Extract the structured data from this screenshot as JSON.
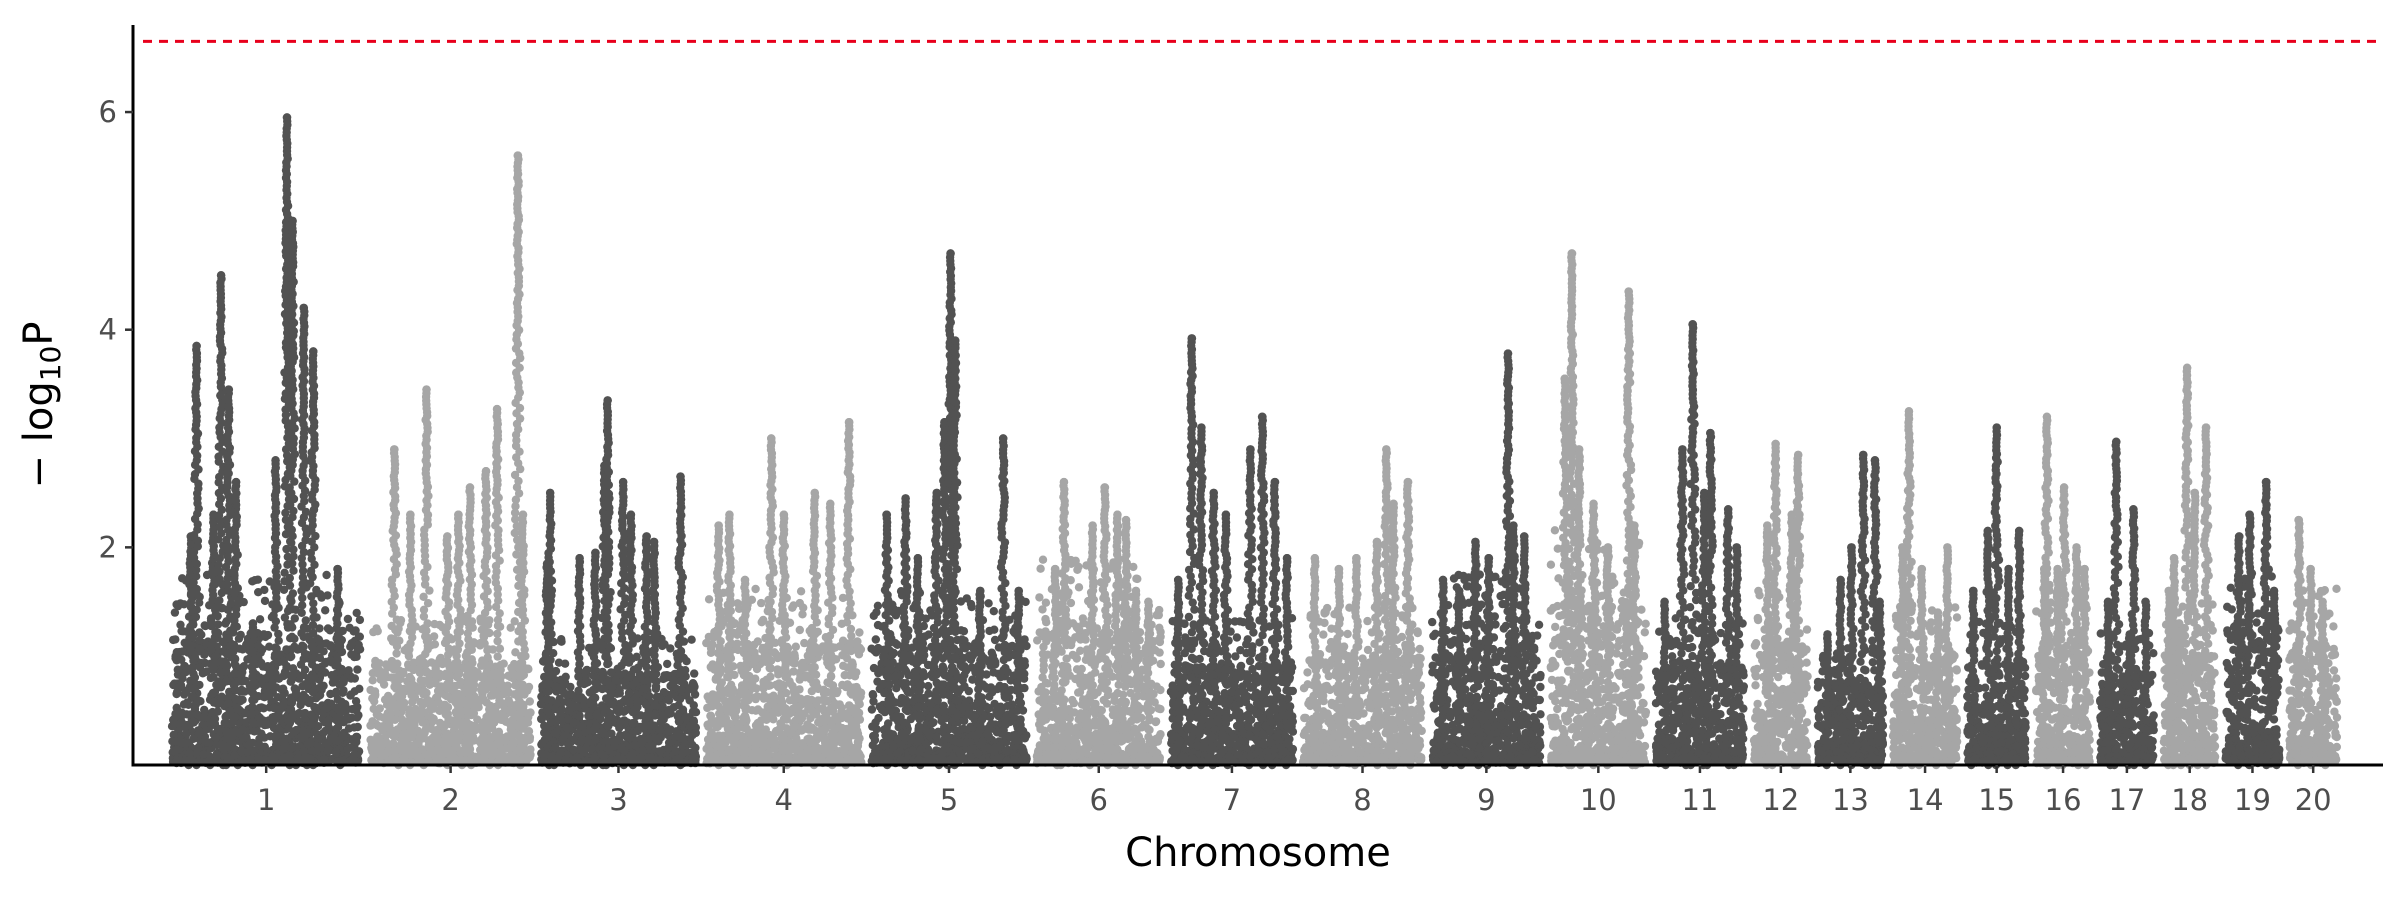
{
  "chart_data": {
    "type": "scatter",
    "subtype": "manhattan",
    "title": "",
    "xlabel": "Chromosome",
    "ylabel_parts": {
      "pre": "− log",
      "sub": "10",
      "post": "P"
    },
    "ylim": [
      0,
      6.8
    ],
    "yticks": [
      2,
      4,
      6
    ],
    "threshold": 6.65,
    "grid": false,
    "legend": "none",
    "colors": {
      "odd": "#525252",
      "even": "#a6a6a6",
      "threshold": "#e8001c",
      "axis": "#000000"
    },
    "chromosomes": [
      {
        "label": "1",
        "size": 182,
        "bg": 1.3,
        "peaks": [
          [
            0.1,
            2.1
          ],
          [
            0.13,
            3.85
          ],
          [
            0.22,
            2.3
          ],
          [
            0.26,
            4.5
          ],
          [
            0.3,
            3.45
          ],
          [
            0.34,
            2.6
          ],
          [
            0.43,
            1.3
          ],
          [
            0.55,
            2.8
          ],
          [
            0.61,
            5.95
          ],
          [
            0.64,
            5.0
          ],
          [
            0.7,
            4.2
          ],
          [
            0.75,
            3.8
          ],
          [
            0.88,
            1.8
          ]
        ]
      },
      {
        "label": "2",
        "size": 155,
        "bg": 1.0,
        "peaks": [
          [
            0.15,
            2.9
          ],
          [
            0.25,
            2.3
          ],
          [
            0.35,
            3.45
          ],
          [
            0.48,
            2.1
          ],
          [
            0.55,
            2.3
          ],
          [
            0.62,
            2.55
          ],
          [
            0.72,
            2.7
          ],
          [
            0.79,
            3.27
          ],
          [
            0.92,
            5.6
          ],
          [
            0.95,
            2.3
          ]
        ]
      },
      {
        "label": "3",
        "size": 150,
        "bg": 0.9,
        "peaks": [
          [
            0.04,
            1.85
          ],
          [
            0.06,
            2.5
          ],
          [
            0.25,
            1.9
          ],
          [
            0.35,
            1.95
          ],
          [
            0.41,
            2.75
          ],
          [
            0.43,
            3.35
          ],
          [
            0.53,
            2.6
          ],
          [
            0.58,
            2.3
          ],
          [
            0.68,
            2.1
          ],
          [
            0.73,
            2.05
          ],
          [
            0.9,
            2.65
          ]
        ]
      },
      {
        "label": "4",
        "size": 150,
        "bg": 1.2,
        "peaks": [
          [
            0.08,
            2.2
          ],
          [
            0.15,
            2.3
          ],
          [
            0.25,
            1.7
          ],
          [
            0.42,
            3.0
          ],
          [
            0.5,
            2.3
          ],
          [
            0.7,
            2.5
          ],
          [
            0.8,
            2.4
          ],
          [
            0.92,
            3.15
          ]
        ]
      },
      {
        "label": "5",
        "size": 150,
        "bg": 1.2,
        "peaks": [
          [
            0.1,
            2.3
          ],
          [
            0.22,
            2.45
          ],
          [
            0.3,
            1.9
          ],
          [
            0.42,
            2.5
          ],
          [
            0.47,
            3.15
          ],
          [
            0.51,
            4.7
          ],
          [
            0.54,
            3.9
          ],
          [
            0.7,
            1.6
          ],
          [
            0.85,
            3.0
          ],
          [
            0.95,
            1.6
          ]
        ]
      },
      {
        "label": "6",
        "size": 120,
        "bg": 1.4,
        "peaks": [
          [
            0.15,
            1.8
          ],
          [
            0.22,
            2.6
          ],
          [
            0.45,
            2.2
          ],
          [
            0.55,
            2.55
          ],
          [
            0.65,
            2.3
          ],
          [
            0.72,
            2.25
          ],
          [
            0.8,
            1.6
          ],
          [
            0.9,
            1.5
          ]
        ]
      },
      {
        "label": "7",
        "size": 118,
        "bg": 1.0,
        "peaks": [
          [
            0.06,
            1.7
          ],
          [
            0.17,
            3.92
          ],
          [
            0.25,
            3.1
          ],
          [
            0.35,
            2.5
          ],
          [
            0.45,
            2.3
          ],
          [
            0.65,
            2.9
          ],
          [
            0.75,
            3.2
          ],
          [
            0.85,
            2.6
          ],
          [
            0.95,
            1.9
          ]
        ]
      },
      {
        "label": "8",
        "size": 115,
        "bg": 1.1,
        "peaks": [
          [
            0.1,
            1.9
          ],
          [
            0.3,
            1.8
          ],
          [
            0.45,
            1.9
          ],
          [
            0.62,
            2.05
          ],
          [
            0.7,
            2.9
          ],
          [
            0.76,
            2.4
          ],
          [
            0.88,
            2.6
          ]
        ]
      },
      {
        "label": "9",
        "size": 105,
        "bg": 1.3,
        "peaks": [
          [
            0.1,
            1.7
          ],
          [
            0.25,
            1.6
          ],
          [
            0.4,
            2.05
          ],
          [
            0.52,
            1.9
          ],
          [
            0.7,
            3.78
          ],
          [
            0.75,
            2.2
          ],
          [
            0.85,
            2.1
          ]
        ]
      },
      {
        "label": "10",
        "size": 92,
        "bg": 1.6,
        "peaks": [
          [
            0.15,
            3.55
          ],
          [
            0.22,
            4.7
          ],
          [
            0.3,
            2.9
          ],
          [
            0.45,
            2.4
          ],
          [
            0.6,
            2.0
          ],
          [
            0.82,
            4.35
          ],
          [
            0.88,
            2.2
          ]
        ]
      },
      {
        "label": "11",
        "size": 85,
        "bg": 1.0,
        "peaks": [
          [
            0.1,
            1.5
          ],
          [
            0.3,
            2.9
          ],
          [
            0.42,
            4.05
          ],
          [
            0.55,
            2.5
          ],
          [
            0.62,
            3.05
          ],
          [
            0.82,
            2.35
          ],
          [
            0.92,
            2.0
          ]
        ]
      },
      {
        "label": "12",
        "size": 52,
        "bg": 1.2,
        "peaks": [
          [
            0.25,
            2.2
          ],
          [
            0.4,
            2.95
          ],
          [
            0.7,
            2.3
          ],
          [
            0.82,
            2.85
          ]
        ]
      },
      {
        "label": "13",
        "size": 63,
        "bg": 0.8,
        "peaks": [
          [
            0.15,
            1.2
          ],
          [
            0.35,
            1.7
          ],
          [
            0.52,
            2.0
          ],
          [
            0.7,
            2.85
          ],
          [
            0.88,
            2.8
          ],
          [
            0.95,
            1.5
          ]
        ]
      },
      {
        "label": "14",
        "size": 62,
        "bg": 1.1,
        "peaks": [
          [
            0.15,
            2.0
          ],
          [
            0.25,
            3.25
          ],
          [
            0.45,
            1.8
          ],
          [
            0.7,
            1.4
          ],
          [
            0.85,
            2.0
          ]
        ]
      },
      {
        "label": "15",
        "size": 57,
        "bg": 1.0,
        "peaks": [
          [
            0.1,
            1.6
          ],
          [
            0.35,
            2.15
          ],
          [
            0.5,
            3.1
          ],
          [
            0.7,
            1.8
          ],
          [
            0.88,
            2.15
          ]
        ]
      },
      {
        "label": "16",
        "size": 52,
        "bg": 1.2,
        "peaks": [
          [
            0.15,
            1.8
          ],
          [
            0.2,
            3.2
          ],
          [
            0.4,
            1.8
          ],
          [
            0.52,
            2.55
          ],
          [
            0.75,
            2.0
          ],
          [
            0.9,
            1.8
          ]
        ]
      },
      {
        "label": "17",
        "size": 52,
        "bg": 0.9,
        "peaks": [
          [
            0.15,
            1.5
          ],
          [
            0.3,
            2.97
          ],
          [
            0.55,
            1.2
          ],
          [
            0.62,
            2.35
          ],
          [
            0.85,
            1.5
          ]
        ]
      },
      {
        "label": "18",
        "size": 50,
        "bg": 1.1,
        "peaks": [
          [
            0.1,
            1.6
          ],
          [
            0.2,
            1.9
          ],
          [
            0.3,
            1.3
          ],
          [
            0.45,
            3.65
          ],
          [
            0.6,
            2.5
          ],
          [
            0.82,
            3.1
          ]
        ]
      },
      {
        "label": "19",
        "size": 52,
        "bg": 1.4,
        "peaks": [
          [
            0.25,
            2.1
          ],
          [
            0.45,
            2.3
          ],
          [
            0.75,
            2.6
          ],
          [
            0.9,
            1.6
          ]
        ]
      },
      {
        "label": "20",
        "size": 46,
        "bg": 1.2,
        "peaks": [
          [
            0.2,
            2.25
          ],
          [
            0.45,
            1.8
          ],
          [
            0.7,
            1.5
          ]
        ]
      }
    ]
  }
}
